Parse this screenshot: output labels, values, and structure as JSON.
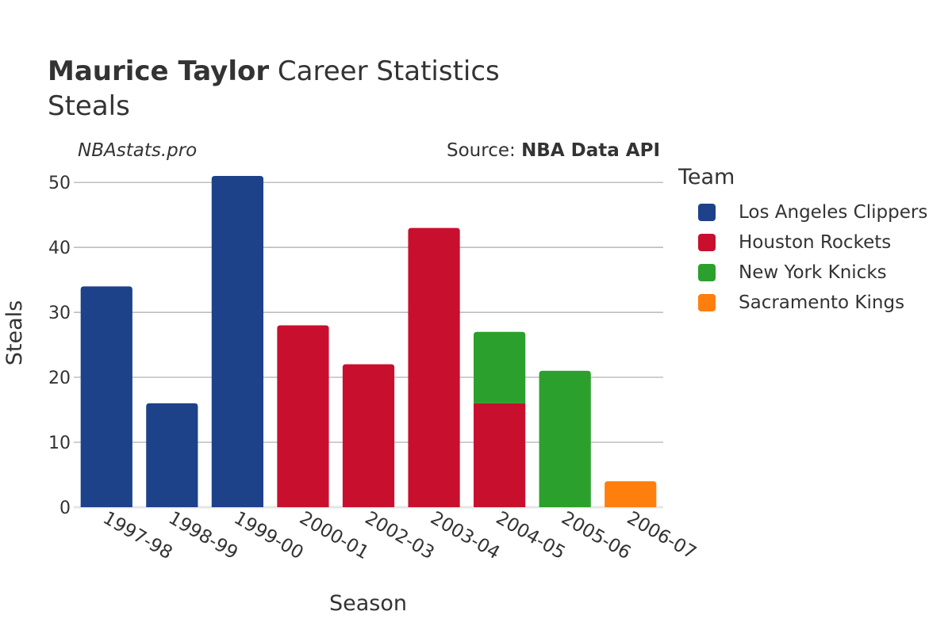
{
  "header": {
    "player_name": "Maurice Taylor",
    "title_rest": "Career Statistics",
    "subtitle": "Steals"
  },
  "watermark": "NBAstats.pro",
  "source": {
    "prefix": "Source: ",
    "name": "NBA Data API"
  },
  "legend": {
    "title": "Team",
    "items": [
      {
        "label": "Los Angeles Clippers",
        "color": "#1d428a"
      },
      {
        "label": "Houston Rockets",
        "color": "#c8102e"
      },
      {
        "label": "New York Knicks",
        "color": "#2ca02c"
      },
      {
        "label": "Sacramento Kings",
        "color": "#ff7f0e"
      }
    ]
  },
  "chart_data": {
    "type": "bar",
    "stacked": true,
    "xlabel": "Season",
    "ylabel": "Steals",
    "ylim": [
      0,
      51
    ],
    "yticks": [
      0,
      10,
      20,
      30,
      40,
      50
    ],
    "grid": true,
    "legend_position": "right",
    "categories": [
      "1997-98",
      "1998-99",
      "1999-00",
      "2000-01",
      "2002-03",
      "2003-04",
      "2004-05",
      "2005-06",
      "2006-07"
    ],
    "series": [
      {
        "name": "Los Angeles Clippers",
        "color": "#1d428a",
        "values": [
          34,
          16,
          51,
          0,
          0,
          0,
          0,
          0,
          0
        ]
      },
      {
        "name": "Houston Rockets",
        "color": "#c8102e",
        "values": [
          0,
          0,
          0,
          28,
          22,
          43,
          16,
          0,
          0
        ]
      },
      {
        "name": "New York Knicks",
        "color": "#2ca02c",
        "values": [
          0,
          0,
          0,
          0,
          0,
          0,
          11,
          21,
          0
        ]
      },
      {
        "name": "Sacramento Kings",
        "color": "#ff7f0e",
        "values": [
          0,
          0,
          0,
          0,
          0,
          0,
          0,
          0,
          4
        ]
      }
    ]
  }
}
